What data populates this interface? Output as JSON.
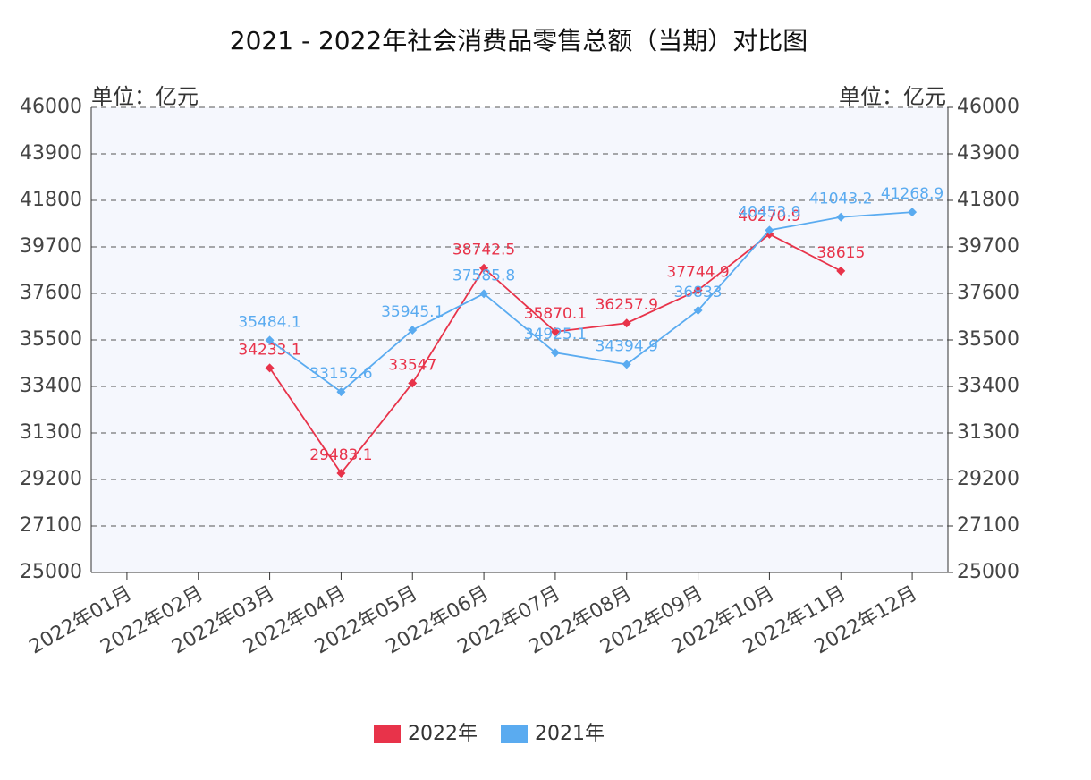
{
  "chart_data": {
    "type": "line",
    "title": "2021 - 2022年社会消费品零售总额（当期）对比图",
    "y_unit": "单位：亿元",
    "y2_unit": "单位：亿元",
    "categories": [
      "2022年01月",
      "2022年02月",
      "2022年03月",
      "2022年04月",
      "2022年05月",
      "2022年06月",
      "2022年07月",
      "2022年08月",
      "2022年09月",
      "2022年10月",
      "2022年11月",
      "2022年12月"
    ],
    "series": [
      {
        "name": "2022年",
        "color": "#e8334a",
        "values": [
          null,
          null,
          34233.1,
          29483.1,
          33547,
          38742.5,
          35870.1,
          36257.9,
          37744.9,
          40270.9,
          38615,
          null
        ]
      },
      {
        "name": "2021年",
        "color": "#5aabf0",
        "values": [
          null,
          null,
          35484.1,
          33152.6,
          35945.1,
          37585.8,
          34925.1,
          34394.9,
          36833,
          40453.9,
          41043.2,
          41268.9
        ]
      }
    ],
    "ylim": [
      25000,
      46000
    ],
    "yticks": [
      25000,
      27100,
      29200,
      31300,
      33400,
      35500,
      37600,
      39700,
      41800,
      43900,
      46000
    ],
    "y2lim": [
      25000,
      46000
    ],
    "y2ticks": [
      25000,
      27100,
      29200,
      31300,
      33400,
      35500,
      37600,
      39700,
      41800,
      43900,
      46000
    ],
    "grid": true,
    "legend": "bottom"
  }
}
